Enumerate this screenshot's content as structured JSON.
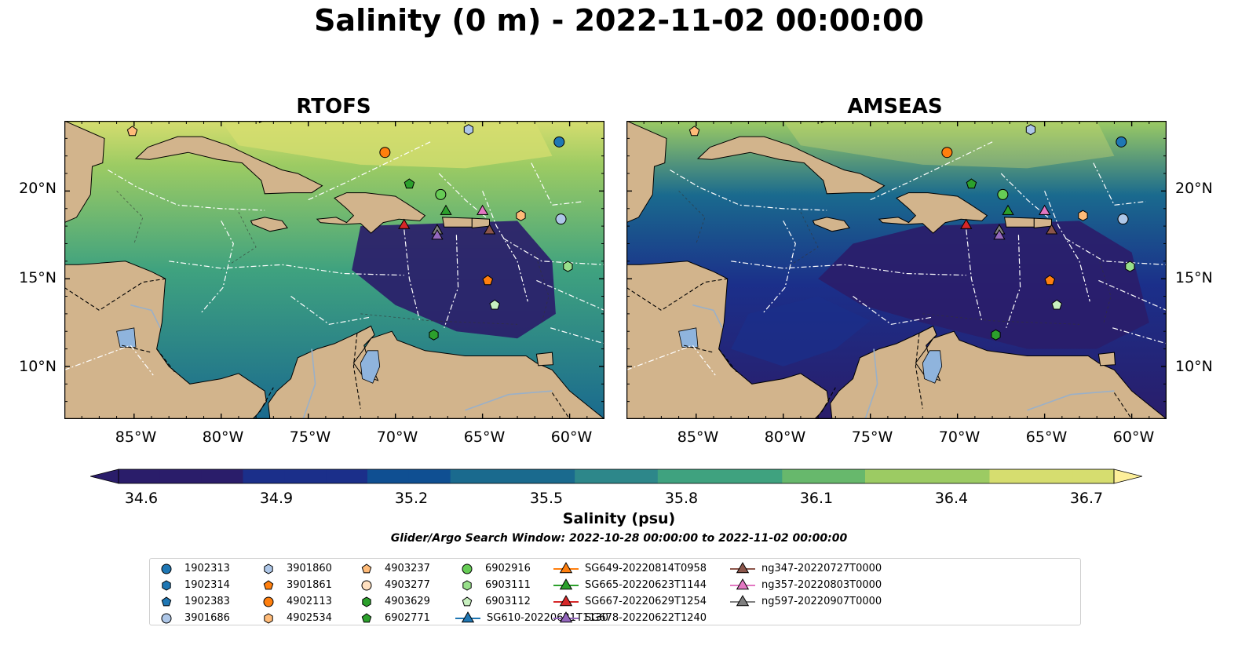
{
  "figure": {
    "title": "Salinity (0 m) - 2022-11-02 00:00:00",
    "search_window": "Glider/Argo Search Window: 2022-10-28 00:00:00 to 2022-11-02 00:00:00"
  },
  "panels": [
    {
      "title": "RTOFS"
    },
    {
      "title": "AMSEAS"
    }
  ],
  "colorbar": {
    "label": "Salinity (psu)",
    "ticks": [
      "34.6",
      "34.9",
      "35.2",
      "35.5",
      "35.8",
      "36.1",
      "36.4",
      "36.7"
    ],
    "vmin": 34.6,
    "vmax": 36.7,
    "extend": "both",
    "colormap": "haline",
    "colors": [
      "#2a1d6a",
      "#1b2f8a",
      "#0f4f92",
      "#1a6a8e",
      "#2d878a",
      "#3fa27f",
      "#67b86c",
      "#9ccb63",
      "#d6dd6f",
      "#fdef9a"
    ]
  },
  "chart_data": [
    {
      "type": "map",
      "title": "RTOFS",
      "variable": "Salinity (0 m)",
      "units": "psu",
      "lon_range": [
        -89,
        -58
      ],
      "lat_range": [
        7,
        24
      ],
      "lon_ticks": [
        "85°W",
        "80°W",
        "75°W",
        "70°W",
        "65°W",
        "60°W"
      ],
      "lat_ticks": [
        "10°N",
        "15°N",
        "20°N"
      ],
      "markers": [
        {
          "id": "4903237",
          "lon": -85.1,
          "lat": 23.4
        },
        {
          "id": "3901860",
          "lon": -65.8,
          "lat": 23.5
        },
        {
          "id": "1902313",
          "lon": -60.6,
          "lat": 22.8
        },
        {
          "id": "4902113",
          "lon": -70.6,
          "lat": 22.2
        },
        {
          "id": "6902771",
          "lon": -69.2,
          "lat": 20.4
        },
        {
          "id": "6902916",
          "lon": -67.4,
          "lat": 19.8
        },
        {
          "id": "4902534",
          "lon": -62.8,
          "lat": 18.6
        },
        {
          "id": "3901686",
          "lon": -60.5,
          "lat": 18.4
        },
        {
          "id": "SG665-20220623T1144",
          "lon": -67.1,
          "lat": 18.9
        },
        {
          "id": "ng357-20220803T0000",
          "lon": -65.0,
          "lat": 18.9
        },
        {
          "id": "SG667-20220629T1254",
          "lon": -69.5,
          "lat": 18.1
        },
        {
          "id": "ng347-20220727T0000",
          "lon": -64.6,
          "lat": 17.8
        },
        {
          "id": "ng597-20220907T0000",
          "lon": -67.6,
          "lat": 17.8
        },
        {
          "id": "SG678-20220622T1240",
          "lon": -67.6,
          "lat": 17.5
        },
        {
          "id": "6903111",
          "lon": -60.1,
          "lat": 15.7
        },
        {
          "id": "3901861",
          "lon": -64.7,
          "lat": 14.9
        },
        {
          "id": "6903112",
          "lon": -64.3,
          "lat": 13.5
        },
        {
          "id": "4903629",
          "lon": -67.8,
          "lat": 11.8
        }
      ]
    },
    {
      "type": "map",
      "title": "AMSEAS",
      "variable": "Salinity (0 m)",
      "units": "psu",
      "lon_range": [
        -89,
        -58
      ],
      "lat_range": [
        7,
        24
      ],
      "lon_ticks": [
        "85°W",
        "80°W",
        "75°W",
        "70°W",
        "65°W",
        "60°W"
      ],
      "lat_ticks": [
        "10°N",
        "15°N",
        "20°N"
      ],
      "markers": [
        {
          "id": "4903237",
          "lon": -85.1,
          "lat": 23.4
        },
        {
          "id": "3901860",
          "lon": -65.8,
          "lat": 23.5
        },
        {
          "id": "1902313",
          "lon": -60.6,
          "lat": 22.8
        },
        {
          "id": "4902113",
          "lon": -70.6,
          "lat": 22.2
        },
        {
          "id": "6902771",
          "lon": -69.2,
          "lat": 20.4
        },
        {
          "id": "6902916",
          "lon": -67.4,
          "lat": 19.8
        },
        {
          "id": "4902534",
          "lon": -62.8,
          "lat": 18.6
        },
        {
          "id": "3901686",
          "lon": -60.5,
          "lat": 18.4
        },
        {
          "id": "SG665-20220623T1144",
          "lon": -67.1,
          "lat": 18.9
        },
        {
          "id": "ng357-20220803T0000",
          "lon": -65.0,
          "lat": 18.9
        },
        {
          "id": "SG667-20220629T1254",
          "lon": -69.5,
          "lat": 18.1
        },
        {
          "id": "ng347-20220727T0000",
          "lon": -64.6,
          "lat": 17.8
        },
        {
          "id": "ng597-20220907T0000",
          "lon": -67.6,
          "lat": 17.8
        },
        {
          "id": "SG678-20220622T1240",
          "lon": -67.6,
          "lat": 17.5
        },
        {
          "id": "6903111",
          "lon": -60.1,
          "lat": 15.7
        },
        {
          "id": "3901861",
          "lon": -64.7,
          "lat": 14.9
        },
        {
          "id": "6903112",
          "lon": -64.3,
          "lat": 13.5
        },
        {
          "id": "4903629",
          "lon": -67.8,
          "lat": 11.8
        }
      ]
    }
  ],
  "legend": {
    "entries": [
      {
        "label": "1902313",
        "marker": "circle",
        "color": "#1f77b4",
        "line": false
      },
      {
        "label": "1902314",
        "marker": "hexagon",
        "color": "#1f77b4",
        "line": false
      },
      {
        "label": "1902383",
        "marker": "pentagon",
        "color": "#1f77b4",
        "line": false
      },
      {
        "label": "3901686",
        "marker": "circle",
        "color": "#aec7e8",
        "line": false
      },
      {
        "label": "3901860",
        "marker": "hexagon",
        "color": "#aec7e8",
        "line": false
      },
      {
        "label": "3901861",
        "marker": "pentagon",
        "color": "#ff7f0e",
        "line": false
      },
      {
        "label": "4902113",
        "marker": "circle",
        "color": "#ff7f0e",
        "line": false
      },
      {
        "label": "4902534",
        "marker": "hexagon",
        "color": "#ffbb78",
        "line": false
      },
      {
        "label": "4903237",
        "marker": "pentagon",
        "color": "#ffbb78",
        "line": false
      },
      {
        "label": "4903277",
        "marker": "circle",
        "color": "#ffe0c0",
        "line": false
      },
      {
        "label": "4903629",
        "marker": "hexagon",
        "color": "#2ca02c",
        "line": false
      },
      {
        "label": "6902771",
        "marker": "pentagon",
        "color": "#2ca02c",
        "line": false
      },
      {
        "label": "6902916",
        "marker": "circle",
        "color": "#66cc55",
        "line": false
      },
      {
        "label": "6903111",
        "marker": "hexagon",
        "color": "#98df8a",
        "line": false
      },
      {
        "label": "6903112",
        "marker": "pentagon",
        "color": "#c8f0bf",
        "line": false
      },
      {
        "label": "SG610-20220621T1130",
        "marker": "triangle",
        "color": "#1f77b4",
        "line": true
      },
      {
        "label": "SG649-20220814T0958",
        "marker": "triangle",
        "color": "#ff7f0e",
        "line": true
      },
      {
        "label": "SG665-20220623T1144",
        "marker": "triangle",
        "color": "#2ca02c",
        "line": true
      },
      {
        "label": "SG667-20220629T1254",
        "marker": "triangle",
        "color": "#d62728",
        "line": true
      },
      {
        "label": "SG678-20220622T1240",
        "marker": "triangle",
        "color": "#9467bd",
        "line": true
      },
      {
        "label": "ng347-20220727T0000",
        "marker": "triangle",
        "color": "#8c564b",
        "line": true
      },
      {
        "label": "ng357-20220803T0000",
        "marker": "triangle",
        "color": "#e377c2",
        "line": true
      },
      {
        "label": "ng597-20220907T0000",
        "marker": "triangle",
        "color": "#7f7f7f",
        "line": true
      }
    ]
  },
  "map_style": {
    "land_color": "#d2b48c",
    "pacific_color_amseas": "#9ab8df",
    "lake_color": "#8fb4dd",
    "eez_line_color": "#ffffff",
    "border_line_color": "#000000",
    "river_color": "#9ab0c8"
  }
}
